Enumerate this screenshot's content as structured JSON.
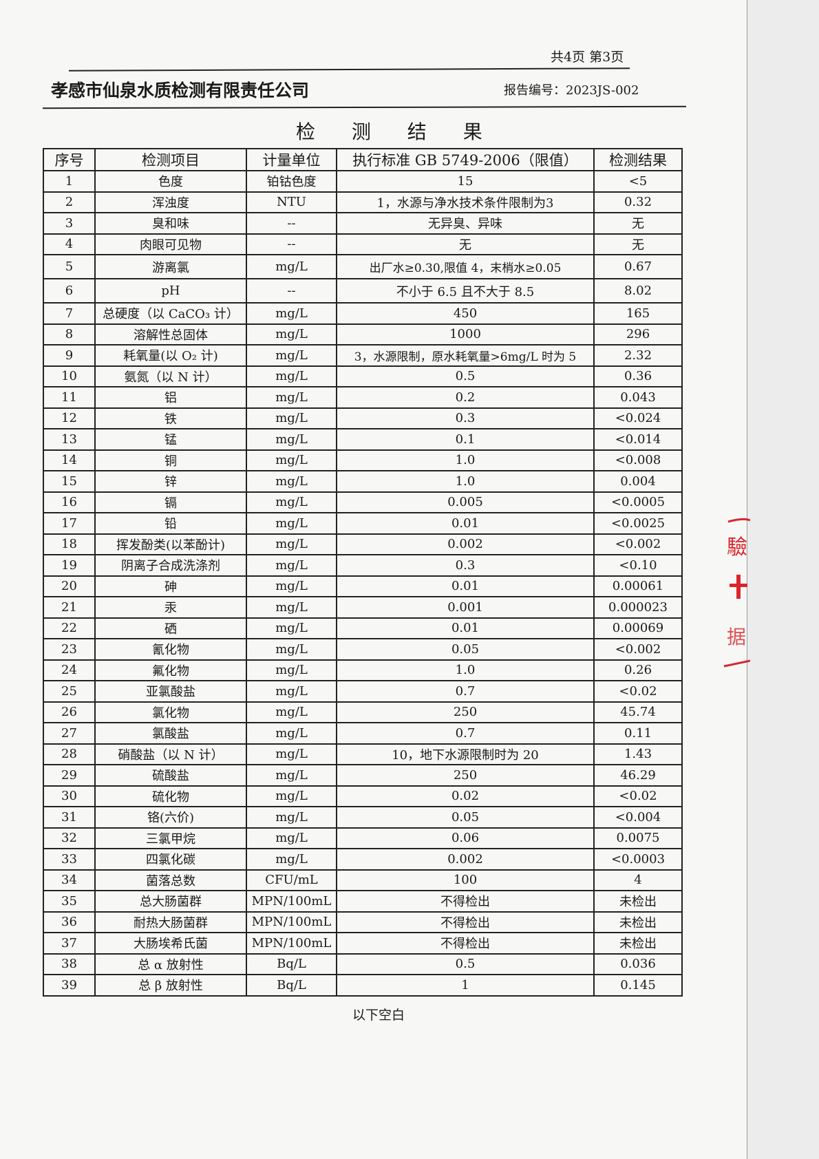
{
  "header": {
    "page_info": "共4页 第3页",
    "company": "孝感市仙泉水质检测有限责任公司",
    "report_no": "报告编号：2023JS-002"
  },
  "title": "检 测 结 果",
  "table": {
    "columns": [
      "序号",
      "检测项目",
      "计量单位",
      "执行标准 GB 5749-2006（限值）",
      "检测结果"
    ],
    "rows": [
      [
        "1",
        "色度",
        "铂钴色度",
        "15",
        "<5"
      ],
      [
        "2",
        "浑浊度",
        "NTU",
        "1，水源与净水技术条件限制为3",
        "0.32"
      ],
      [
        "3",
        "臭和味",
        "--",
        "无异臭、异味",
        "无"
      ],
      [
        "4",
        "肉眼可见物",
        "--",
        "无",
        "无"
      ],
      [
        "5",
        "游离氯",
        "mg/L",
        "出厂水≥0.30,限值 4，末梢水≥0.05",
        "0.67"
      ],
      [
        "6",
        "pH",
        "--",
        "不小于 6.5 且不大于 8.5",
        "8.02"
      ],
      [
        "7",
        "总硬度（以 CaCO₃ 计）",
        "mg/L",
        "450",
        "165"
      ],
      [
        "8",
        "溶解性总固体",
        "mg/L",
        "1000",
        "296"
      ],
      [
        "9",
        "耗氧量(以 O₂ 计)",
        "mg/L",
        "3，水源限制，原水耗氧量>6mg/L 时为 5",
        "2.32"
      ],
      [
        "10",
        "氨氮（以 N 计）",
        "mg/L",
        "0.5",
        "0.36"
      ],
      [
        "11",
        "铝",
        "mg/L",
        "0.2",
        "0.043"
      ],
      [
        "12",
        "铁",
        "mg/L",
        "0.3",
        "<0.024"
      ],
      [
        "13",
        "锰",
        "mg/L",
        "0.1",
        "<0.014"
      ],
      [
        "14",
        "铜",
        "mg/L",
        "1.0",
        "<0.008"
      ],
      [
        "15",
        "锌",
        "mg/L",
        "1.0",
        "0.004"
      ],
      [
        "16",
        "镉",
        "mg/L",
        "0.005",
        "<0.0005"
      ],
      [
        "17",
        "铅",
        "mg/L",
        "0.01",
        "<0.0025"
      ],
      [
        "18",
        "挥发酚类(以苯酚计)",
        "mg/L",
        "0.002",
        "<0.002"
      ],
      [
        "19",
        "阴离子合成洗涤剂",
        "mg/L",
        "0.3",
        "<0.10"
      ],
      [
        "20",
        "砷",
        "mg/L",
        "0.01",
        "0.00061"
      ],
      [
        "21",
        "汞",
        "mg/L",
        "0.001",
        "0.000023"
      ],
      [
        "22",
        "硒",
        "mg/L",
        "0.01",
        "0.00069"
      ],
      [
        "23",
        "氰化物",
        "mg/L",
        "0.05",
        "<0.002"
      ],
      [
        "24",
        "氟化物",
        "mg/L",
        "1.0",
        "0.26"
      ],
      [
        "25",
        "亚氯酸盐",
        "mg/L",
        "0.7",
        "<0.02"
      ],
      [
        "26",
        "氯化物",
        "mg/L",
        "250",
        "45.74"
      ],
      [
        "27",
        "氯酸盐",
        "mg/L",
        "0.7",
        "0.11"
      ],
      [
        "28",
        "硝酸盐（以 N 计）",
        "mg/L",
        "10，地下水源限制时为 20",
        "1.43"
      ],
      [
        "29",
        "硫酸盐",
        "mg/L",
        "250",
        "46.29"
      ],
      [
        "30",
        "硫化物",
        "mg/L",
        "0.02",
        "<0.02"
      ],
      [
        "31",
        "铬(六价)",
        "mg/L",
        "0.05",
        "<0.004"
      ],
      [
        "32",
        "三氯甲烷",
        "mg/L",
        "0.06",
        "0.0075"
      ],
      [
        "33",
        "四氯化碳",
        "mg/L",
        "0.002",
        "<0.0003"
      ],
      [
        "34",
        "菌落总数",
        "CFU/mL",
        "100",
        "4"
      ],
      [
        "35",
        "总大肠菌群",
        "MPN/100mL",
        "不得检出",
        "未检出"
      ],
      [
        "36",
        "耐热大肠菌群",
        "MPN/100mL",
        "不得检出",
        "未检出"
      ],
      [
        "37",
        "大肠埃希氏菌",
        "MPN/100mL",
        "不得检出",
        "未检出"
      ],
      [
        "38",
        "总 α 放射性",
        "Bq/L",
        "0.5",
        "0.036"
      ],
      [
        "39",
        "总 β 放射性",
        "Bq/L",
        "1",
        "0.145"
      ]
    ]
  },
  "footer": "以下空白",
  "colors": {
    "stamp": "#d9262c",
    "ink": "#1a1a1a"
  }
}
